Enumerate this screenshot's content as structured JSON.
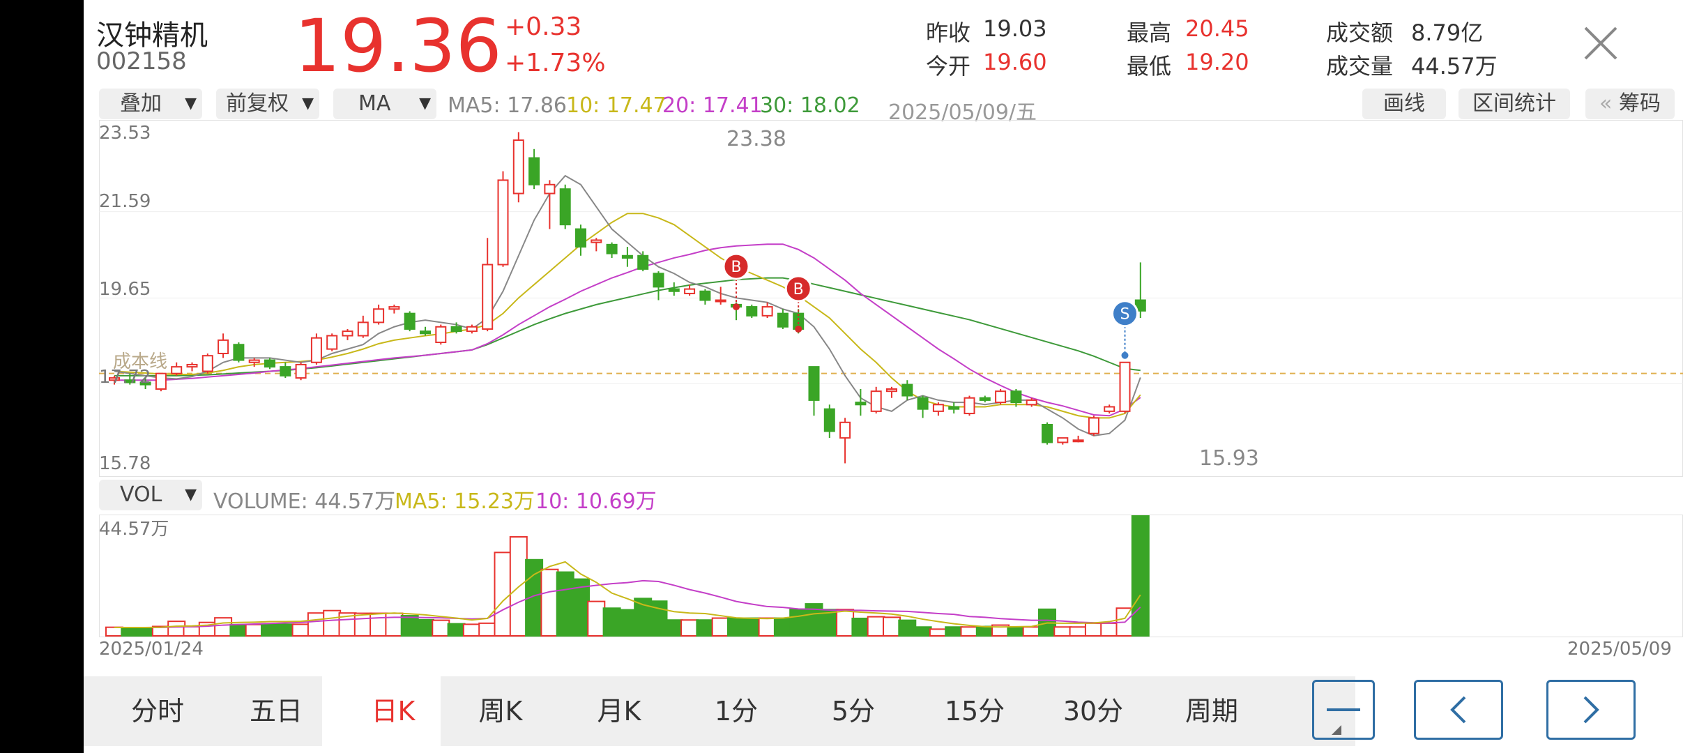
{
  "stock": {
    "name": "汉钟精机",
    "code": "002158",
    "price": "19.36",
    "change": "+0.33",
    "change_pct": "+1.73%"
  },
  "quote": {
    "prev_close_label": "昨收",
    "prev_close": "19.03",
    "open_label": "今开",
    "open": "19.60",
    "high_label": "最高",
    "high": "20.45",
    "low_label": "最低",
    "low": "19.20",
    "amount_label": "成交额",
    "amount": "8.79亿",
    "volume_label": "成交量",
    "volume": "44.57万"
  },
  "toolbar": {
    "overlay": "叠加",
    "adjust": "前复权",
    "indicator": "MA",
    "ma5": "MA5: 17.86",
    "ma10": "10: 17.47",
    "ma20": "20: 17.41",
    "ma30": "30: 18.02",
    "date": "2025/05/09/五",
    "draw": "画线",
    "range_stats": "区间统计",
    "chips": "筹码",
    "chips_prefix": "«"
  },
  "volume_bar": {
    "indicator": "VOL",
    "volume": "VOLUME: 44.57万",
    "ma5": "MA5: 15.23万",
    "ma10": "10: 10.69万"
  },
  "colors": {
    "up": "#e8322e",
    "down": "#3aa526",
    "ma5": "#888888",
    "ma10": "#c8b81a",
    "ma20": "#c43fc8",
    "ma30": "#3e9a3a",
    "accent": "#2f6ea4"
  },
  "periods": [
    {
      "label": "分时",
      "active": false
    },
    {
      "label": "五日",
      "active": false
    },
    {
      "label": "日K",
      "active": true
    },
    {
      "label": "周K",
      "active": false
    },
    {
      "label": "月K",
      "active": false
    },
    {
      "label": "1分",
      "active": false
    },
    {
      "label": "5分",
      "active": false
    },
    {
      "label": "15分",
      "active": false
    },
    {
      "label": "30分",
      "active": false
    },
    {
      "label": "周期",
      "active": false
    }
  ],
  "nav": {
    "minus_icon": "minus-icon",
    "prev_icon": "chevron-left-icon",
    "next_icon": "chevron-right-icon",
    "close_icon": "close-icon"
  },
  "chart_data": {
    "type": "candlestick",
    "price_axis_labels": [
      "23.53",
      "21.59",
      "19.65",
      "17.72",
      "15.78"
    ],
    "ylim": [
      15.78,
      23.53
    ],
    "volume_axis_label": "44.57万",
    "start_date": "2025/01/24",
    "end_date": "2025/05/09",
    "max_label": "23.38",
    "min_label": "15.93",
    "reference_line_label": "成本线",
    "signals": [
      {
        "label": "B",
        "index": 40
      },
      {
        "label": "B",
        "index": 44
      },
      {
        "label": "S",
        "index": 65
      }
    ],
    "candles": [
      {
        "o": 17.8,
        "h": 17.9,
        "l": 17.7,
        "c": 17.85
      },
      {
        "o": 17.8,
        "h": 17.95,
        "l": 17.7,
        "c": 17.75
      },
      {
        "o": 17.75,
        "h": 17.85,
        "l": 17.6,
        "c": 17.7
      },
      {
        "o": 17.6,
        "h": 17.95,
        "l": 17.55,
        "c": 17.95
      },
      {
        "o": 17.95,
        "h": 18.2,
        "l": 17.9,
        "c": 18.1
      },
      {
        "o": 18.1,
        "h": 18.2,
        "l": 18.0,
        "c": 18.15
      },
      {
        "o": 18.0,
        "h": 18.4,
        "l": 17.95,
        "c": 18.35
      },
      {
        "o": 18.4,
        "h": 18.85,
        "l": 18.3,
        "c": 18.7
      },
      {
        "o": 18.6,
        "h": 18.65,
        "l": 18.2,
        "c": 18.25
      },
      {
        "o": 18.2,
        "h": 18.3,
        "l": 18.1,
        "c": 18.25
      },
      {
        "o": 18.25,
        "h": 18.3,
        "l": 18.05,
        "c": 18.1
      },
      {
        "o": 18.1,
        "h": 18.2,
        "l": 17.85,
        "c": 17.9
      },
      {
        "o": 17.85,
        "h": 18.2,
        "l": 17.8,
        "c": 18.15
      },
      {
        "o": 18.2,
        "h": 18.85,
        "l": 18.15,
        "c": 18.75
      },
      {
        "o": 18.5,
        "h": 18.85,
        "l": 18.45,
        "c": 18.8
      },
      {
        "o": 18.8,
        "h": 18.95,
        "l": 18.7,
        "c": 18.9
      },
      {
        "o": 18.8,
        "h": 19.25,
        "l": 18.75,
        "c": 19.1
      },
      {
        "o": 19.1,
        "h": 19.5,
        "l": 19.05,
        "c": 19.4
      },
      {
        "o": 19.4,
        "h": 19.5,
        "l": 19.3,
        "c": 19.45
      },
      {
        "o": 19.3,
        "h": 19.35,
        "l": 18.9,
        "c": 18.95
      },
      {
        "o": 18.9,
        "h": 19.0,
        "l": 18.8,
        "c": 18.85
      },
      {
        "o": 18.65,
        "h": 19.05,
        "l": 18.6,
        "c": 19.0
      },
      {
        "o": 19.0,
        "h": 19.1,
        "l": 18.85,
        "c": 18.9
      },
      {
        "o": 18.9,
        "h": 19.05,
        "l": 18.85,
        "c": 19.0
      },
      {
        "o": 18.95,
        "h": 21.0,
        "l": 18.9,
        "c": 20.4
      },
      {
        "o": 20.4,
        "h": 22.5,
        "l": 20.35,
        "c": 22.3
      },
      {
        "o": 22.0,
        "h": 23.38,
        "l": 21.8,
        "c": 23.2
      },
      {
        "o": 22.8,
        "h": 23.0,
        "l": 22.1,
        "c": 22.2
      },
      {
        "o": 22.0,
        "h": 22.3,
        "l": 21.2,
        "c": 22.2
      },
      {
        "o": 22.1,
        "h": 22.2,
        "l": 21.2,
        "c": 21.3
      },
      {
        "o": 21.2,
        "h": 21.3,
        "l": 20.6,
        "c": 20.8
      },
      {
        "o": 20.9,
        "h": 21.0,
        "l": 20.7,
        "c": 20.95
      },
      {
        "o": 20.85,
        "h": 20.9,
        "l": 20.55,
        "c": 20.65
      },
      {
        "o": 20.6,
        "h": 20.8,
        "l": 20.35,
        "c": 20.55
      },
      {
        "o": 20.6,
        "h": 20.7,
        "l": 20.25,
        "c": 20.3
      },
      {
        "o": 20.2,
        "h": 20.25,
        "l": 19.6,
        "c": 19.9
      },
      {
        "o": 19.85,
        "h": 20.0,
        "l": 19.7,
        "c": 19.8
      },
      {
        "o": 19.75,
        "h": 19.95,
        "l": 19.7,
        "c": 19.85
      },
      {
        "o": 19.8,
        "h": 19.85,
        "l": 19.5,
        "c": 19.6
      },
      {
        "o": 19.6,
        "h": 19.9,
        "l": 19.5,
        "c": 19.6
      },
      {
        "o": 19.5,
        "h": 19.55,
        "l": 19.15,
        "c": 19.45
      },
      {
        "o": 19.45,
        "h": 19.5,
        "l": 19.2,
        "c": 19.25
      },
      {
        "o": 19.25,
        "h": 19.55,
        "l": 19.2,
        "c": 19.45
      },
      {
        "o": 19.3,
        "h": 19.4,
        "l": 18.95,
        "c": 19.0
      },
      {
        "o": 19.3,
        "h": 19.4,
        "l": 18.85,
        "c": 18.95
      },
      {
        "o": 18.1,
        "h": 18.1,
        "l": 17.0,
        "c": 17.35
      },
      {
        "o": 17.15,
        "h": 17.25,
        "l": 16.5,
        "c": 16.65
      },
      {
        "o": 16.5,
        "h": 16.95,
        "l": 15.93,
        "c": 16.85
      },
      {
        "o": 17.3,
        "h": 17.6,
        "l": 17.0,
        "c": 17.25
      },
      {
        "o": 17.1,
        "h": 17.65,
        "l": 17.05,
        "c": 17.55
      },
      {
        "o": 17.55,
        "h": 17.65,
        "l": 17.4,
        "c": 17.6
      },
      {
        "o": 17.7,
        "h": 17.8,
        "l": 17.35,
        "c": 17.45
      },
      {
        "o": 17.4,
        "h": 17.45,
        "l": 16.95,
        "c": 17.15
      },
      {
        "o": 17.1,
        "h": 17.3,
        "l": 17.0,
        "c": 17.25
      },
      {
        "o": 17.2,
        "h": 17.3,
        "l": 17.05,
        "c": 17.15
      },
      {
        "o": 17.05,
        "h": 17.45,
        "l": 17.0,
        "c": 17.4
      },
      {
        "o": 17.4,
        "h": 17.45,
        "l": 17.3,
        "c": 17.35
      },
      {
        "o": 17.3,
        "h": 17.6,
        "l": 17.25,
        "c": 17.55
      },
      {
        "o": 17.55,
        "h": 17.6,
        "l": 17.2,
        "c": 17.3
      },
      {
        "o": 17.25,
        "h": 17.4,
        "l": 17.2,
        "c": 17.35
      },
      {
        "o": 16.8,
        "h": 16.85,
        "l": 16.35,
        "c": 16.4
      },
      {
        "o": 16.4,
        "h": 16.5,
        "l": 16.35,
        "c": 16.5
      },
      {
        "o": 16.45,
        "h": 16.55,
        "l": 16.4,
        "c": 16.45
      },
      {
        "o": 16.6,
        "h": 17.0,
        "l": 16.55,
        "c": 16.95
      },
      {
        "o": 17.1,
        "h": 17.25,
        "l": 17.05,
        "c": 17.2
      },
      {
        "o": 17.1,
        "h": 18.2,
        "l": 17.05,
        "c": 18.2
      },
      {
        "o": 19.6,
        "h": 20.45,
        "l": 19.2,
        "c": 19.36
      }
    ],
    "volumes": [
      3.2,
      3.0,
      2.8,
      3.5,
      5.4,
      3.4,
      5.0,
      6.7,
      4.2,
      4.2,
      4.2,
      4.3,
      4.3,
      8.5,
      9.4,
      8.5,
      8.4,
      8.4,
      8.4,
      7.5,
      6.0,
      5.8,
      4.5,
      4.3,
      4.7,
      31.0,
      36.8,
      28.3,
      24.7,
      23.7,
      21.1,
      12.8,
      10.3,
      9.7,
      13.9,
      12.9,
      5.9,
      5.9,
      5.9,
      6.6,
      6.6,
      6.6,
      6.6,
      6.6,
      9.9,
      11.9,
      9.8,
      9.8,
      6.5,
      7.1,
      6.9,
      5.8,
      3.3,
      2.5,
      3.3,
      3.3,
      3.5,
      4.0,
      3.2,
      3.3,
      9.9,
      3.3,
      3.3,
      4.7,
      4.7,
      10.3,
      44.57
    ],
    "vol_ma5": [
      3.1,
      3.1,
      3.1,
      3.2,
      3.6,
      3.7,
      4.0,
      4.8,
      5.0,
      5.1,
      5.3,
      5.3,
      5.4,
      6.0,
      6.6,
      7.3,
      7.8,
      8.2,
      8.5,
      8.2,
      7.8,
      7.2,
      6.6,
      5.9,
      6.5,
      13.0,
      18.2,
      22.8,
      25.8,
      27.5,
      23.0,
      19.9,
      15.9,
      13.8,
      11.6,
      10.2,
      9.0,
      8.5,
      8.3,
      7.5,
      6.7,
      6.5,
      6.4,
      6.6,
      7.3,
      8.2,
      8.6,
      9.2,
      8.8,
      8.5,
      8.1,
      7.3,
      6.2,
      5.3,
      4.5,
      3.9,
      3.4,
      3.3,
      3.4,
      3.5,
      4.8,
      4.7,
      4.7,
      4.8,
      5.3,
      6.5,
      15.23
    ],
    "vol_ma10": [
      3.1,
      3.1,
      3.1,
      3.1,
      3.3,
      3.4,
      3.6,
      4.0,
      4.2,
      4.4,
      4.6,
      4.8,
      5.0,
      5.4,
      5.8,
      6.1,
      6.4,
      6.7,
      6.9,
      6.9,
      6.8,
      6.7,
      6.5,
      6.3,
      6.5,
      9.7,
      12.5,
      14.9,
      16.4,
      17.2,
      18.1,
      18.8,
      19.4,
      19.8,
      20.5,
      20.2,
      18.8,
      17.2,
      15.9,
      14.4,
      12.8,
      11.8,
      10.9,
      10.6,
      10.0,
      9.9,
      9.6,
      9.5,
      9.5,
      9.3,
      9.2,
      9.1,
      8.7,
      8.3,
      8.0,
      7.2,
      6.9,
      6.4,
      6.1,
      5.8,
      5.8,
      5.5,
      5.1,
      4.9,
      4.8,
      5.1,
      10.69
    ],
    "ma5": [
      18.0,
      17.95,
      17.9,
      17.85,
      17.83,
      17.88,
      18.0,
      18.2,
      18.3,
      18.3,
      18.3,
      18.25,
      18.2,
      18.25,
      18.4,
      18.5,
      18.6,
      18.85,
      19.0,
      19.1,
      19.15,
      19.1,
      19.05,
      18.95,
      19.2,
      19.8,
      20.6,
      21.4,
      22.0,
      22.4,
      22.2,
      21.7,
      21.2,
      20.9,
      20.6,
      20.35,
      20.2,
      20.0,
      19.9,
      19.75,
      19.65,
      19.6,
      19.55,
      19.4,
      19.3,
      19.0,
      18.5,
      17.9,
      17.4,
      17.2,
      17.1,
      17.35,
      17.45,
      17.35,
      17.3,
      17.3,
      17.25,
      17.3,
      17.35,
      17.35,
      17.15,
      16.95,
      16.7,
      16.55,
      16.6,
      16.9,
      17.86
    ],
    "ma10": [
      18.0,
      17.98,
      17.96,
      17.94,
      17.93,
      17.93,
      17.96,
      18.02,
      18.1,
      18.15,
      18.18,
      18.2,
      18.22,
      18.25,
      18.32,
      18.4,
      18.5,
      18.62,
      18.7,
      18.75,
      18.8,
      18.84,
      18.9,
      18.95,
      19.05,
      19.3,
      19.65,
      19.95,
      20.25,
      20.55,
      20.85,
      21.1,
      21.35,
      21.55,
      21.55,
      21.45,
      21.3,
      21.05,
      20.8,
      20.55,
      20.35,
      20.2,
      20.05,
      19.9,
      19.7,
      19.45,
      19.2,
      18.85,
      18.5,
      18.2,
      17.85,
      17.55,
      17.35,
      17.25,
      17.2,
      17.2,
      17.2,
      17.25,
      17.25,
      17.25,
      17.2,
      17.1,
      17.0,
      16.95,
      16.95,
      17.05,
      17.47
    ],
    "ma20": [
      17.8,
      17.8,
      17.8,
      17.8,
      17.82,
      17.84,
      17.87,
      17.9,
      17.93,
      17.96,
      18.0,
      18.03,
      18.06,
      18.1,
      18.14,
      18.18,
      18.22,
      18.26,
      18.3,
      18.33,
      18.36,
      18.4,
      18.44,
      18.48,
      18.62,
      18.82,
      19.05,
      19.25,
      19.45,
      19.62,
      19.8,
      19.95,
      20.1,
      20.22,
      20.35,
      20.45,
      20.55,
      20.63,
      20.72,
      20.78,
      20.82,
      20.84,
      20.86,
      20.86,
      20.74,
      20.55,
      20.3,
      20.05,
      19.75,
      19.5,
      19.25,
      19.0,
      18.75,
      18.5,
      18.28,
      18.05,
      17.85,
      17.68,
      17.52,
      17.4,
      17.3,
      17.22,
      17.12,
      17.02,
      17.0,
      17.15,
      17.41
    ],
    "ma30": [
      17.9,
      17.9,
      17.9,
      17.9,
      17.9,
      17.91,
      17.92,
      17.94,
      17.96,
      17.98,
      18.0,
      18.02,
      18.05,
      18.08,
      18.12,
      18.16,
      18.2,
      18.24,
      18.28,
      18.32,
      18.36,
      18.4,
      18.44,
      18.48,
      18.6,
      18.75,
      18.9,
      19.05,
      19.18,
      19.3,
      19.4,
      19.5,
      19.58,
      19.66,
      19.74,
      19.82,
      19.88,
      19.94,
      19.98,
      20.02,
      20.06,
      20.08,
      20.1,
      20.1,
      20.04,
      19.96,
      19.88,
      19.8,
      19.72,
      19.64,
      19.56,
      19.48,
      19.4,
      19.32,
      19.24,
      19.16,
      19.06,
      18.96,
      18.86,
      18.76,
      18.66,
      18.56,
      18.46,
      18.34,
      18.2,
      18.06,
      18.02
    ]
  }
}
